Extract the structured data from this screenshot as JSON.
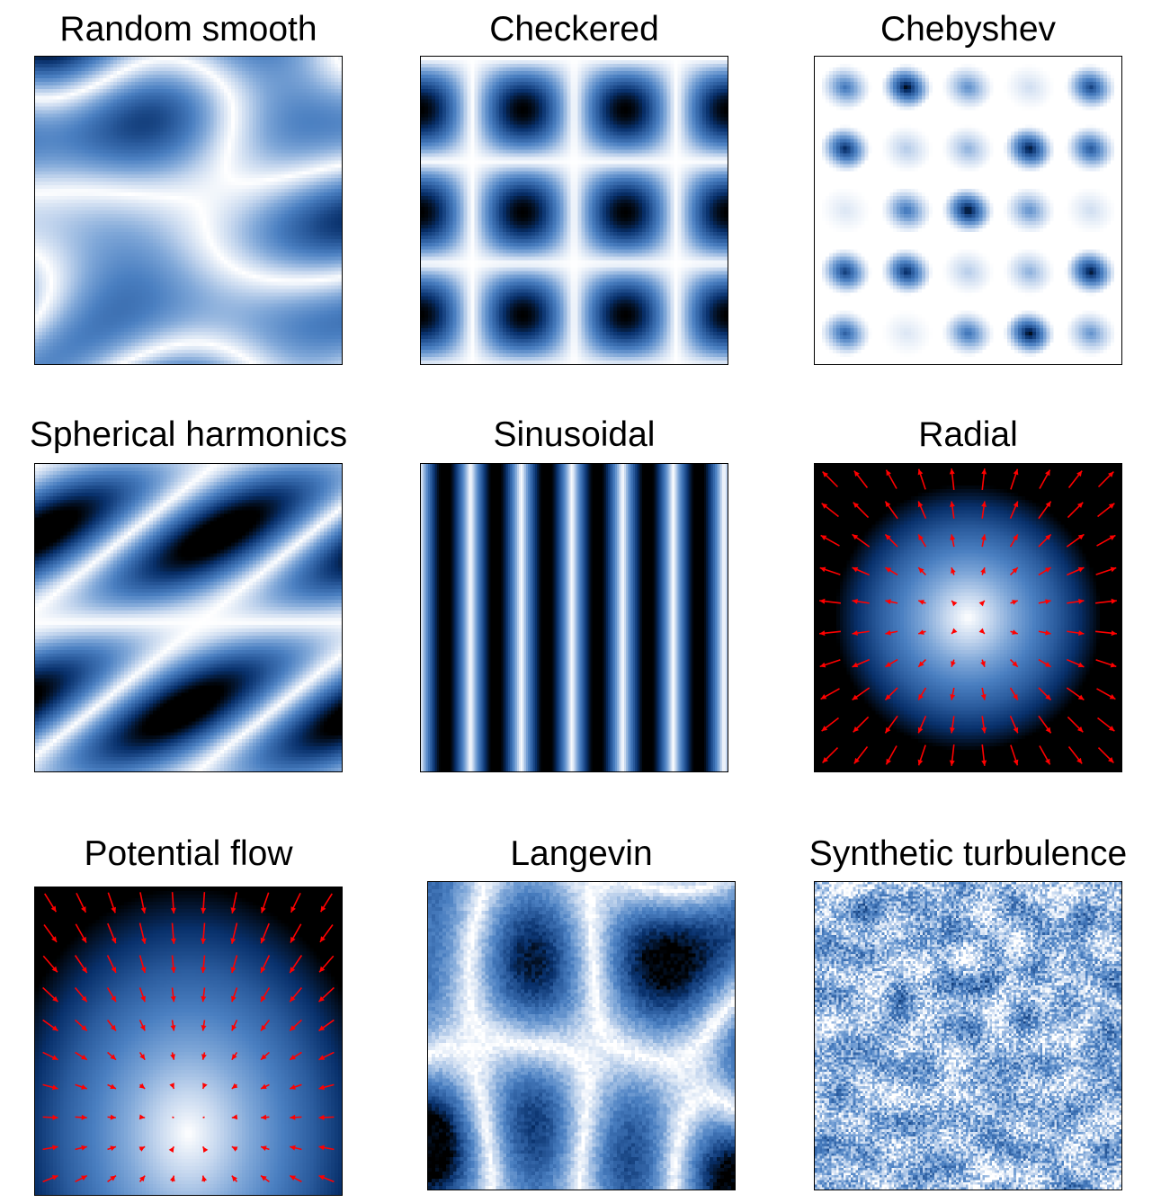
{
  "figure": {
    "colormap": "Blues_r",
    "colormap_stops": [
      "#000000",
      "#08306b",
      "#2b5c9e",
      "#4a7fc1",
      "#7fa7d8",
      "#c4d6ee",
      "#ffffff"
    ],
    "arrow_color": "#ff0000"
  },
  "chart_data": [
    {
      "id": "random-smooth",
      "type": "heatmap",
      "title": "Random smooth",
      "grid": false
    },
    {
      "id": "checkered",
      "type": "heatmap",
      "title": "Checkered",
      "grid": false
    },
    {
      "id": "chebyshev",
      "type": "heatmap",
      "title": "Chebyshev",
      "grid": false
    },
    {
      "id": "spherical-harmonics",
      "type": "heatmap",
      "title": "Spherical harmonics",
      "grid": false
    },
    {
      "id": "sinusoidal",
      "type": "heatmap",
      "title": "Sinusoidal",
      "grid": false
    },
    {
      "id": "radial",
      "type": "heatmap",
      "title": "Radial",
      "grid": false,
      "overlay": "quiver"
    },
    {
      "id": "potential-flow",
      "type": "heatmap",
      "title": "Potential flow",
      "grid": false,
      "overlay": "quiver"
    },
    {
      "id": "langevin",
      "type": "heatmap",
      "title": "Langevin",
      "grid": false
    },
    {
      "id": "synthetic-turbulence",
      "type": "heatmap",
      "title": "Synthetic turbulence",
      "grid": false
    }
  ]
}
